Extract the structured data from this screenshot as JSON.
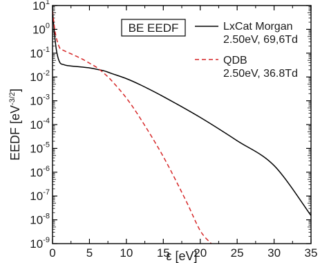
{
  "chart_data": {
    "type": "line",
    "title": "",
    "xlabel": "ε [eV]",
    "ylabel": "EEDF [eV",
    "ylabel_exponent": "-3/2",
    "ylabel_suffix": "]",
    "xlim": [
      0,
      35
    ],
    "ylim_exponents": [
      -9,
      1
    ],
    "yscale": "log",
    "x_ticks": [
      0,
      5,
      10,
      15,
      20,
      25,
      30,
      35
    ],
    "y_tick_base": "10",
    "y_tick_exponents": [
      1,
      0,
      -1,
      -2,
      -3,
      -4,
      -5,
      -6,
      -7,
      -8,
      -9
    ],
    "annotation": "BE EEDF",
    "legend_position": "top-right",
    "series": [
      {
        "name": "LxCat Morgan",
        "sublabel": "2.50eV, 69,6Td",
        "color": "#000000",
        "dash": "solid",
        "x": [
          0,
          0.3,
          0.6,
          1,
          1.5,
          2,
          3,
          4,
          5,
          6,
          7,
          8,
          10,
          12,
          15,
          20,
          25,
          30,
          35
        ],
        "y": [
          6,
          0.5,
          0.1,
          0.04,
          0.033,
          0.03,
          0.028,
          0.026,
          0.024,
          0.021,
          0.018,
          0.014,
          0.0085,
          0.0045,
          0.0015,
          0.0002,
          2.1e-05,
          1.9e-06,
          1.5e-08
        ]
      },
      {
        "name": "QDB",
        "sublabel": "2.50eV, 36.8Td",
        "color": "#d62728",
        "dash": "dashed",
        "x": [
          0,
          0.3,
          0.6,
          1,
          1.5,
          2,
          3,
          4,
          5,
          6,
          7,
          8,
          10,
          12,
          15,
          18,
          20,
          21.5
        ],
        "y": [
          6,
          1.0,
          0.35,
          0.16,
          0.13,
          0.11,
          0.08,
          0.057,
          0.038,
          0.025,
          0.014,
          0.007,
          0.0013,
          0.00016,
          4.5e-06,
          7e-08,
          3.5e-09,
          1e-09
        ]
      }
    ]
  }
}
